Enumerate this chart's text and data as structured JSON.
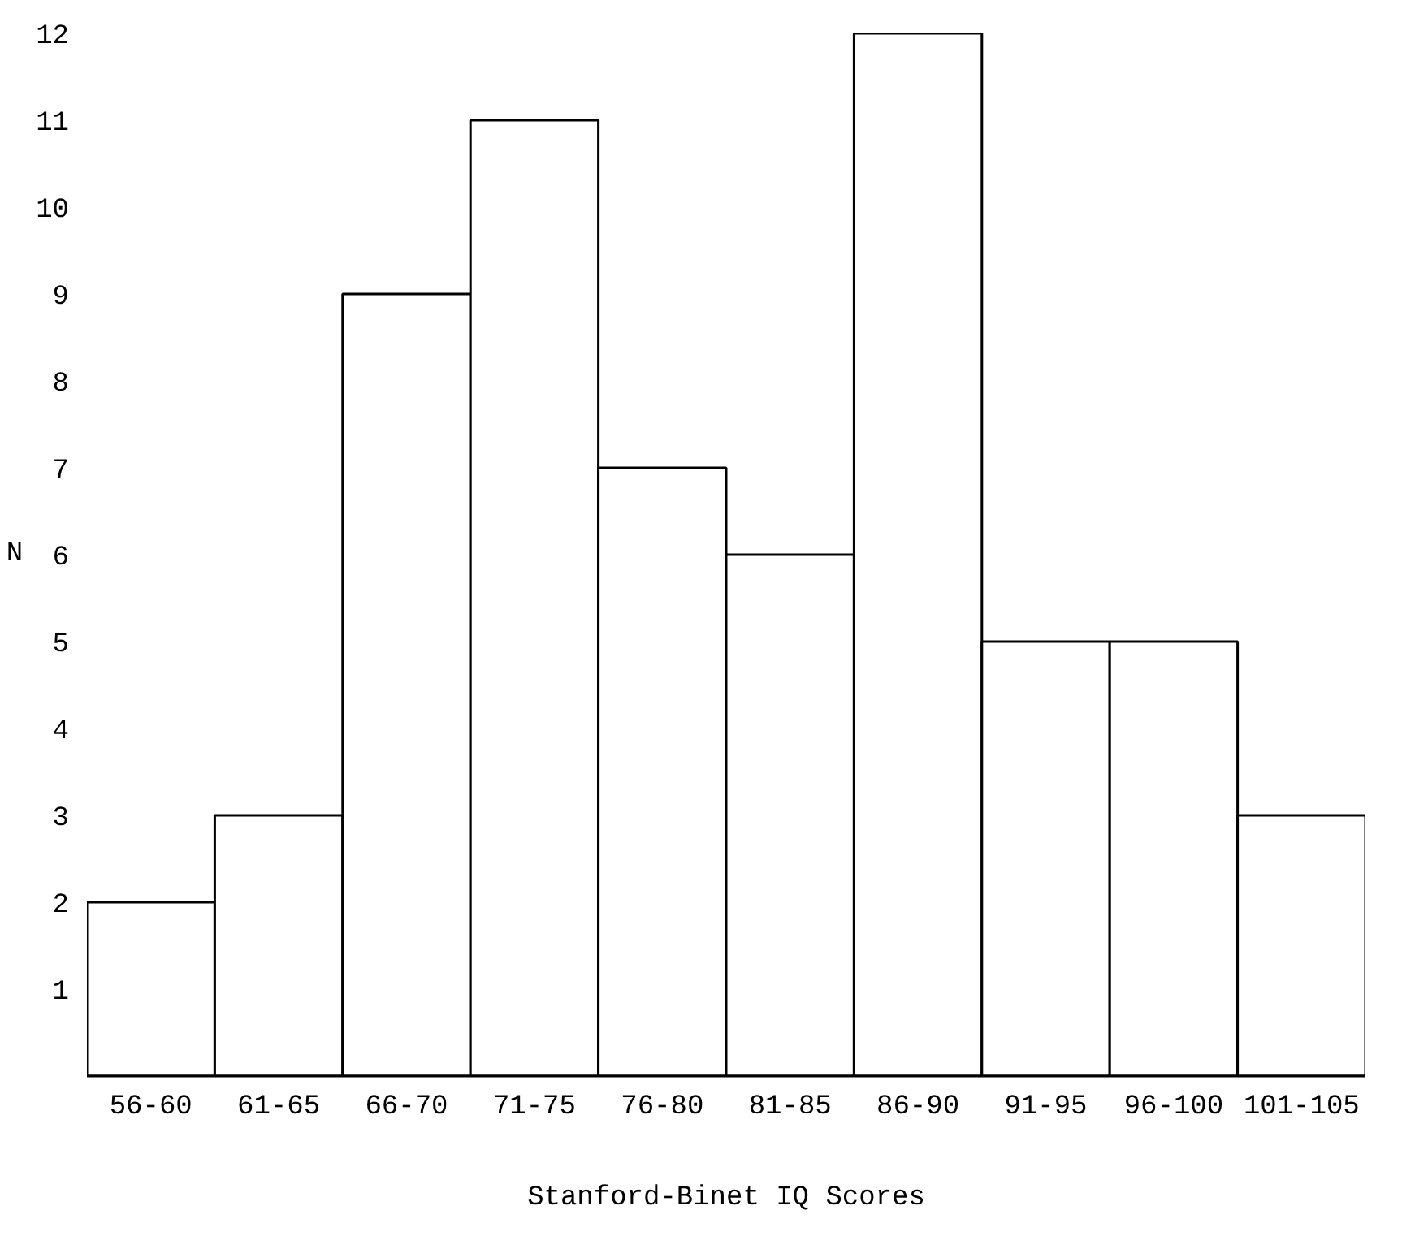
{
  "chart_data": {
    "type": "bar",
    "xlabel": "Stanford-Binet IQ Scores",
    "ylabel": "N",
    "categories": [
      "56-60",
      "61-65",
      "66-70",
      "71-75",
      "76-80",
      "81-85",
      "86-90",
      "91-95",
      "96-100",
      "101-105"
    ],
    "values": [
      2,
      3,
      9,
      11,
      7,
      6,
      12,
      5,
      5,
      3
    ],
    "color": "#ffffff",
    "ylim": [
      0,
      12
    ],
    "yticks": [
      1,
      2,
      3,
      4,
      5,
      6,
      7,
      8,
      9,
      10,
      11,
      12
    ],
    "grid": false
  }
}
